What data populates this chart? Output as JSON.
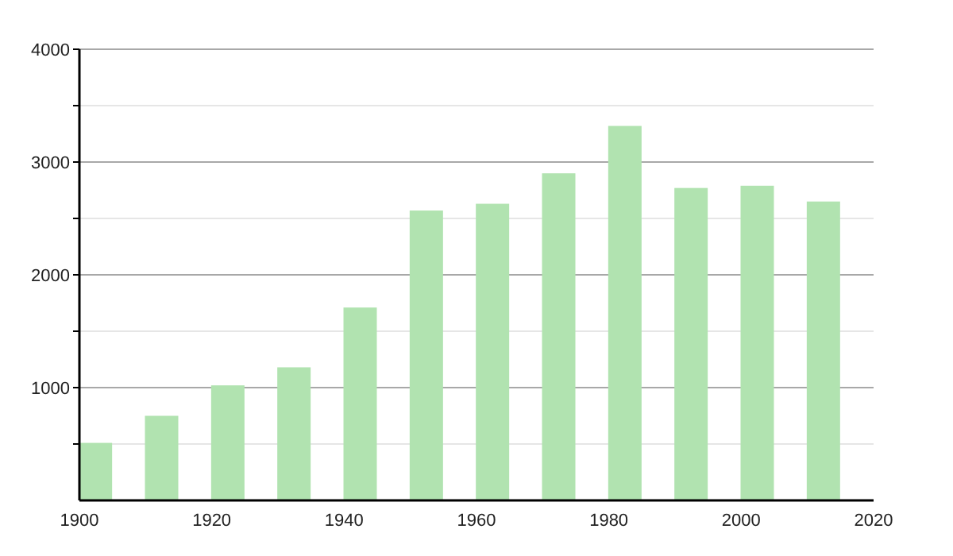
{
  "chart_data": {
    "type": "bar",
    "x": [
      1902.5,
      1912.5,
      1922.5,
      1932.5,
      1942.5,
      1952.5,
      1962.5,
      1972.5,
      1982.5,
      1992.5,
      2002.5,
      2012.5
    ],
    "values": [
      510,
      750,
      1020,
      1180,
      1710,
      2570,
      2630,
      2900,
      3320,
      2770,
      2790,
      2650
    ],
    "color": "#b1e3b0",
    "xlim": [
      1900,
      2020
    ],
    "xticks": [
      1900,
      1920,
      1940,
      1960,
      1980,
      2000,
      2020
    ],
    "ylim": [
      0,
      4000
    ],
    "yticks": [
      {
        "value": 500,
        "label": null
      },
      1000,
      {
        "value": 1500,
        "label": null
      },
      2000,
      {
        "value": 2500,
        "label": null
      },
      3000,
      {
        "value": 3500,
        "label": null
      },
      4000
    ],
    "grid": "y"
  }
}
